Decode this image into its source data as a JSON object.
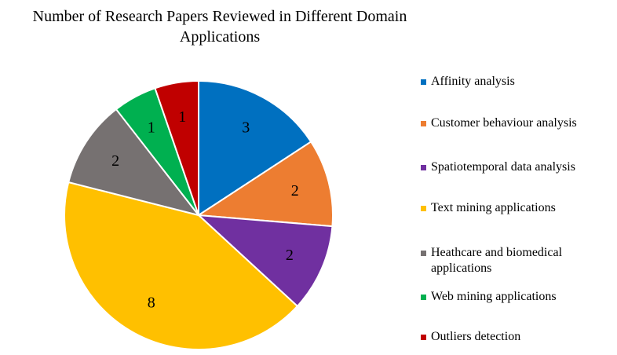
{
  "chart_data": {
    "type": "pie",
    "title": "Number of Research Papers Reviewed  in Different  Domain Applications",
    "title_lines": [
      "Number of Research Papers Reviewed  in Different  Domain",
      "Applications"
    ],
    "legend_position": "right",
    "slices": [
      {
        "label": "Affinity analysis",
        "value": 3,
        "color": "#0070C0"
      },
      {
        "label": "Customer behaviour analysis",
        "value": 2,
        "color": "#ED7D31"
      },
      {
        "label": "Spatiotemporal data analysis",
        "value": 2,
        "color": "#7030A0"
      },
      {
        "label": "Text mining applications",
        "value": 8,
        "color": "#FFC000"
      },
      {
        "label": "Heathcare and biomedical applications",
        "value": 2,
        "color": "#767171"
      },
      {
        "label": "Web mining applications",
        "value": 1,
        "color": "#00B050"
      },
      {
        "label": "Outliers detection",
        "value": 1,
        "color": "#C00000"
      }
    ]
  }
}
